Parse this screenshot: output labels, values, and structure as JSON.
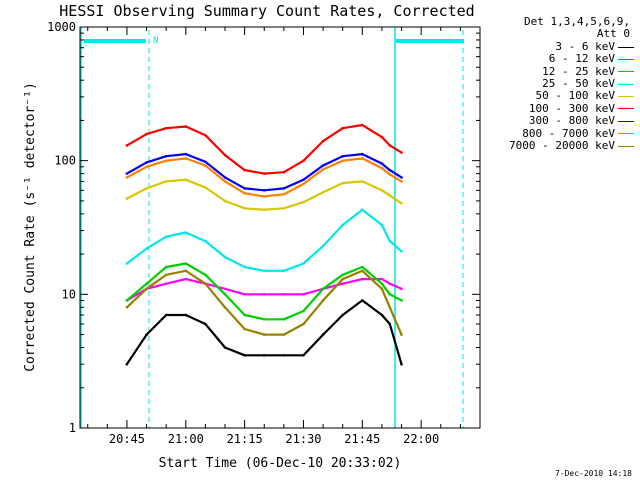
{
  "chart_data": {
    "type": "line",
    "title": "HESSI Observing Summary Count Rates, Corrected",
    "xlabel": "Start Time (06-Dec-10 20:33:02)",
    "ylabel": "Corrected Count Rate (s⁻¹ detector⁻¹)",
    "y_scale": "log",
    "ylim": [
      1,
      1000
    ],
    "y_ticks": [
      1,
      10,
      100,
      1000
    ],
    "y_tick_labels": [
      "1",
      "10",
      "100",
      "1000"
    ],
    "xlim": [
      "20:33:02",
      "22:15:00"
    ],
    "x_tick_labels": [
      "20:45",
      "21:00",
      "21:15",
      "21:30",
      "21:45",
      "22:00"
    ],
    "x_ticks": [
      "20:45",
      "21:00",
      "21:15",
      "21:30",
      "21:45",
      "22:00"
    ],
    "x": [
      "20:45",
      "20:50",
      "20:55",
      "21:00",
      "21:05",
      "21:10",
      "21:15",
      "21:20",
      "21:25",
      "21:30",
      "21:35",
      "21:40",
      "21:45",
      "21:50",
      "21:52",
      "21:55"
    ],
    "series": [
      {
        "name": "3 - 6 keV",
        "color": "#000000",
        "values": [
          3,
          5,
          7,
          7,
          6,
          4,
          3.5,
          3.5,
          3.5,
          3.5,
          5,
          7,
          9,
          7,
          6,
          3
        ]
      },
      {
        "name": "6 - 12 keV",
        "color": "#ff00ff",
        "values": [
          9,
          11,
          12,
          13,
          12,
          11,
          10,
          10,
          10,
          10,
          11,
          12,
          13,
          13,
          12,
          11
        ]
      },
      {
        "name": "12 - 25 keV",
        "color": "#00d000",
        "values": [
          9,
          12,
          16,
          17,
          14,
          10,
          7,
          6.5,
          6.5,
          7.5,
          11,
          14,
          16,
          12,
          10,
          9
        ]
      },
      {
        "name": "25 - 50 keV",
        "color": "#00e8e8",
        "values": [
          17,
          22,
          27,
          29,
          25,
          19,
          16,
          15,
          15,
          17,
          23,
          33,
          43,
          33,
          25,
          21
        ]
      },
      {
        "name": "50 - 100 keV",
        "color": "#d8c800",
        "values": [
          52,
          62,
          70,
          72,
          63,
          50,
          44,
          43,
          44,
          49,
          58,
          68,
          70,
          60,
          55,
          48
        ]
      },
      {
        "name": "100 - 300 keV",
        "color": "#ff0000",
        "values": [
          130,
          158,
          175,
          180,
          155,
          110,
          85,
          80,
          82,
          100,
          140,
          175,
          185,
          150,
          130,
          115
        ]
      },
      {
        "name": "300 - 800 keV",
        "color": "#0000ff",
        "values": [
          80,
          97,
          108,
          112,
          98,
          75,
          62,
          60,
          62,
          72,
          92,
          108,
          112,
          95,
          85,
          75
        ]
      },
      {
        "name": "800 - 7000 keV",
        "color": "#ff8000",
        "values": [
          75,
          90,
          100,
          104,
          92,
          70,
          57,
          54,
          56,
          67,
          86,
          100,
          104,
          88,
          79,
          70
        ]
      },
      {
        "name": "7000 - 20000 keV",
        "color": "#988000",
        "values": [
          8,
          11,
          14,
          15,
          12,
          8,
          5.5,
          5,
          5,
          6,
          9,
          13,
          15,
          11,
          8,
          5
        ]
      }
    ],
    "legend_header": [
      "Det 1,3,4,5,6,9,",
      "Att 0"
    ],
    "legend_position": "right",
    "flag_label": "N",
    "footer": "7-Dec-2010 14:18"
  }
}
